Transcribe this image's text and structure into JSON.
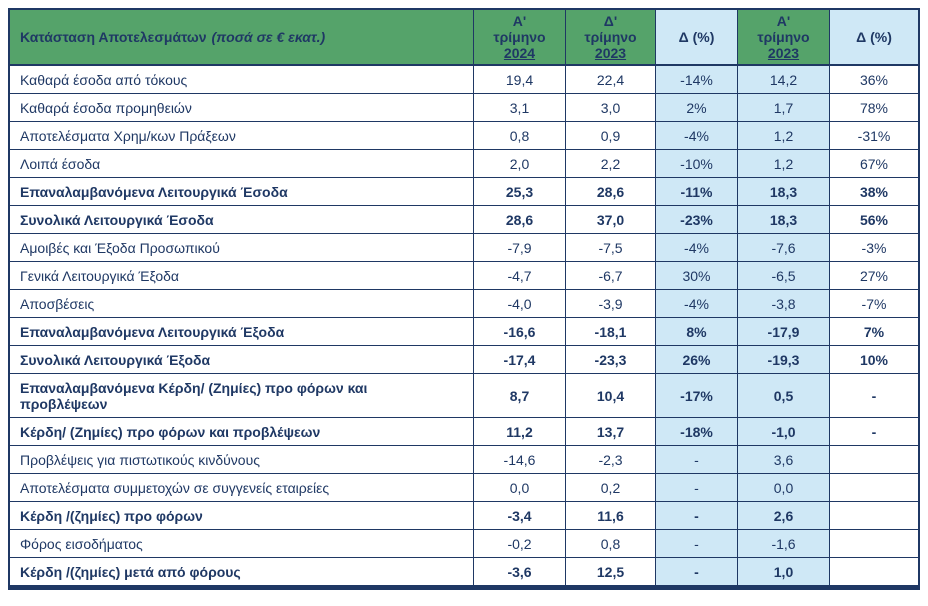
{
  "colors": {
    "navy": "#1f3864",
    "green": "#55a36a",
    "blue": "#cfe8f6"
  },
  "header": {
    "title": "Κατάσταση Αποτελεσμάτων",
    "note": "(ποσά σε € εκατ.)",
    "columns": [
      {
        "prefix": "Α'",
        "word": "τρίμηνο",
        "year": "2024"
      },
      {
        "prefix": "Δ'",
        "word": "τρίμηνο",
        "year": "2023"
      },
      {
        "label": "Δ (%)"
      },
      {
        "prefix": "Α'",
        "word": "τρίμηνο",
        "year": "2023"
      },
      {
        "label": "Δ (%)"
      }
    ]
  },
  "rows": [
    {
      "label": "Καθαρά έσοδα από τόκους",
      "bold": false,
      "tall": false,
      "values": [
        "19,4",
        "22,4",
        "-14%",
        "14,2",
        "36%"
      ]
    },
    {
      "label": "Καθαρά έσοδα προμηθειών",
      "bold": false,
      "tall": false,
      "values": [
        "3,1",
        "3,0",
        "2%",
        "1,7",
        "78%"
      ]
    },
    {
      "label": "Αποτελέσματα Χρημ/κων Πράξεων",
      "bold": false,
      "tall": false,
      "values": [
        "0,8",
        "0,9",
        "-4%",
        "1,2",
        "-31%"
      ]
    },
    {
      "label": "Λοιπά έσοδα",
      "bold": false,
      "tall": false,
      "values": [
        "2,0",
        "2,2",
        "-10%",
        "1,2",
        "67%"
      ]
    },
    {
      "label": "Επαναλαμβανόμενα Λειτουργικά Έσοδα",
      "bold": true,
      "tall": false,
      "values": [
        "25,3",
        "28,6",
        "-11%",
        "18,3",
        "38%"
      ]
    },
    {
      "label": "Συνολικά Λειτουργικά Έσοδα",
      "bold": true,
      "tall": false,
      "values": [
        "28,6",
        "37,0",
        "-23%",
        "18,3",
        "56%"
      ]
    },
    {
      "label": "Αμοιβές και Έξοδα Προσωπικού",
      "bold": false,
      "tall": false,
      "values": [
        "-7,9",
        "-7,5",
        "-4%",
        "-7,6",
        "-3%"
      ]
    },
    {
      "label": "Γενικά Λειτουργικά Έξοδα",
      "bold": false,
      "tall": false,
      "values": [
        "-4,7",
        "-6,7",
        "30%",
        "-6,5",
        "27%"
      ]
    },
    {
      "label": "Αποσβέσεις",
      "bold": false,
      "tall": false,
      "values": [
        "-4,0",
        "-3,9",
        "-4%",
        "-3,8",
        "-7%"
      ]
    },
    {
      "label": "Επαναλαμβανόμενα Λειτουργικά Έξοδα",
      "bold": true,
      "tall": false,
      "values": [
        "-16,6",
        "-18,1",
        "8%",
        "-17,9",
        "7%"
      ]
    },
    {
      "label": "Συνολικά Λειτουργικά Έξοδα",
      "bold": true,
      "tall": false,
      "values": [
        "-17,4",
        "-23,3",
        "26%",
        "-19,3",
        "10%"
      ]
    },
    {
      "label": "Επαναλαμβανόμενα Κέρδη/ (Ζημίες) προ φόρων και προβλέψεων",
      "bold": true,
      "tall": true,
      "values": [
        "8,7",
        "10,4",
        "-17%",
        "0,5",
        "-"
      ]
    },
    {
      "label": "Κέρδη/ (Ζημίες) προ φόρων και προβλέψεων",
      "bold": true,
      "tall": false,
      "values": [
        "11,2",
        "13,7",
        "-18%",
        "-1,0",
        "-"
      ]
    },
    {
      "label": "Προβλέψεις για πιστωτικούς κινδύνους",
      "bold": false,
      "tall": false,
      "values": [
        "-14,6",
        "-2,3",
        "-",
        "3,6",
        ""
      ]
    },
    {
      "label": "Αποτελέσματα συμμετοχών σε συγγενείς εταιρείες",
      "bold": false,
      "tall": false,
      "values": [
        "0,0",
        "0,2",
        "-",
        "0,0",
        ""
      ]
    },
    {
      "label": "Κέρδη /(ζημίες) προ φόρων",
      "bold": true,
      "tall": false,
      "values": [
        "-3,4",
        "11,6",
        "-",
        "2,6",
        ""
      ]
    },
    {
      "label": "Φόρος εισοδήματος",
      "bold": false,
      "tall": false,
      "values": [
        "-0,2",
        "0,8",
        "-",
        "-1,6",
        ""
      ]
    },
    {
      "label": "Κέρδη /(ζημίες) μετά από φόρους",
      "bold": true,
      "tall": false,
      "values": [
        "-3,6",
        "12,5",
        "-",
        "1,0",
        ""
      ]
    }
  ]
}
